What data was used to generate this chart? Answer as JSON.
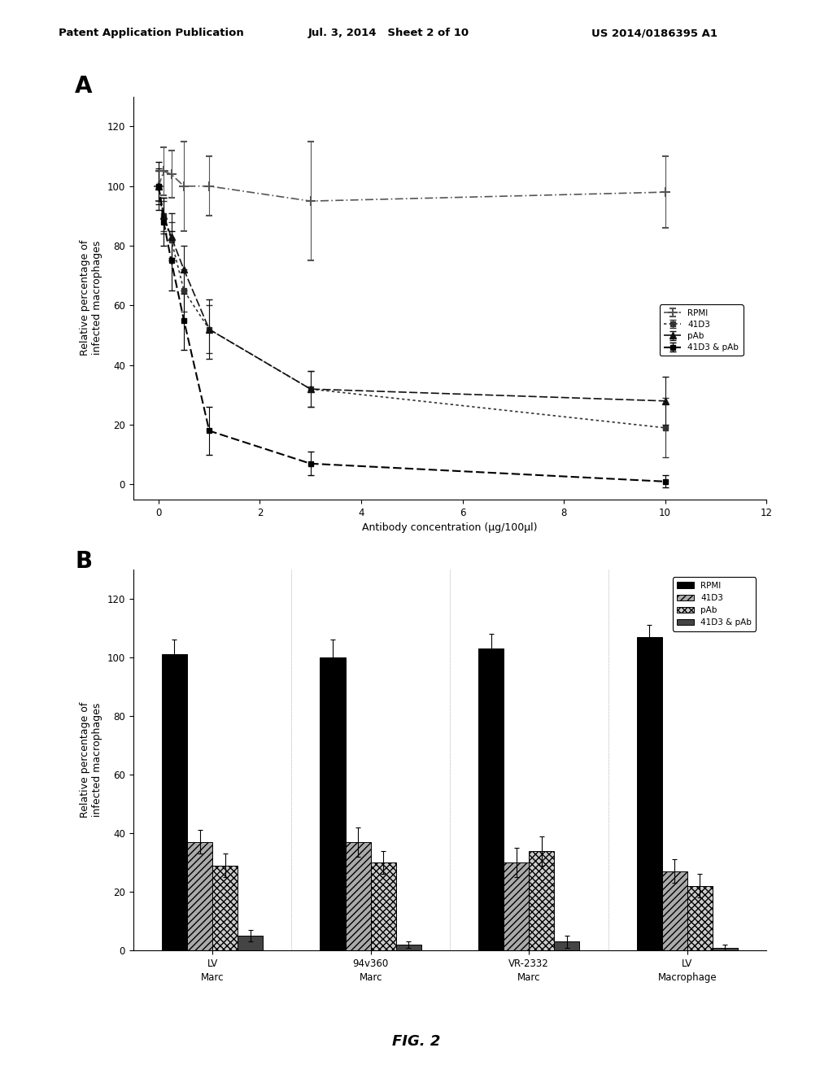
{
  "header_left": "Patent Application Publication",
  "header_mid": "Jul. 3, 2014   Sheet 2 of 10",
  "header_right": "US 2014/0186395 A1",
  "fig_label": "FIG. 2",
  "panel_A_label": "A",
  "panel_B_label": "B",
  "line_xlabel": "Antibody concentration (μg/100μl)",
  "line_ylabel": "Relative percentage of\ninfected macrophages",
  "line_xlim": [
    -0.5,
    12
  ],
  "line_xticks": [
    0,
    2,
    4,
    6,
    8,
    10,
    12
  ],
  "line_ylim": [
    -5,
    130
  ],
  "line_yticks": [
    0,
    20,
    40,
    60,
    80,
    100,
    120
  ],
  "series": {
    "RPMI": {
      "x": [
        0,
        0.1,
        0.25,
        0.5,
        1,
        3,
        10
      ],
      "y": [
        100,
        105,
        104,
        100,
        100,
        95,
        98
      ],
      "yerr": [
        5,
        8,
        8,
        15,
        10,
        20,
        12
      ],
      "label": "RPMI"
    },
    "41D3": {
      "x": [
        0,
        0.1,
        0.25,
        0.5,
        1,
        3,
        10
      ],
      "y": [
        100,
        90,
        82,
        65,
        52,
        32,
        19
      ],
      "yerr": [
        5,
        5,
        6,
        7,
        8,
        6,
        10
      ],
      "label": "41D3"
    },
    "pAb": {
      "x": [
        0,
        0.1,
        0.25,
        0.5,
        1,
        3,
        10
      ],
      "y": [
        100,
        90,
        83,
        72,
        52,
        32,
        28
      ],
      "yerr": [
        6,
        6,
        8,
        8,
        10,
        6,
        8
      ],
      "label": "pAb"
    },
    "41D3_pAb": {
      "x": [
        0,
        0.1,
        0.25,
        0.5,
        1,
        3,
        10
      ],
      "y": [
        100,
        88,
        75,
        55,
        18,
        7,
        1
      ],
      "yerr": [
        8,
        8,
        10,
        10,
        8,
        4,
        2
      ],
      "label": "41D3 & pAb"
    }
  },
  "bar_ylabel": "Relative percentage of\ninfected macrophages",
  "bar_ylim": [
    0,
    130
  ],
  "bar_yticks": [
    0,
    20,
    40,
    60,
    80,
    100,
    120
  ],
  "bar_groups": [
    "LV\nMarc",
    "94v360\nMarc",
    "VR-2332\nMarc",
    "LV\nMacrophage"
  ],
  "bar_data": {
    "RPMI": {
      "values": [
        101,
        100,
        103,
        107
      ],
      "errors": [
        5,
        6,
        5,
        4
      ],
      "color": "#000000",
      "hatch": null,
      "label": "RPMI"
    },
    "41D3": {
      "values": [
        37,
        37,
        30,
        27
      ],
      "errors": [
        4,
        5,
        5,
        4
      ],
      "color": "#aaaaaa",
      "hatch": "////",
      "label": "41D3"
    },
    "pAb": {
      "values": [
        29,
        30,
        34,
        22
      ],
      "errors": [
        4,
        4,
        5,
        4
      ],
      "color": "#cccccc",
      "hatch": "xxxx",
      "label": "pAb"
    },
    "41D3_pAb": {
      "values": [
        5,
        2,
        3,
        1
      ],
      "errors": [
        2,
        1,
        2,
        1
      ],
      "color": "#444444",
      "hatch": null,
      "label": "41D3 & pAb"
    }
  },
  "background_color": "#ffffff",
  "text_color": "#000000"
}
